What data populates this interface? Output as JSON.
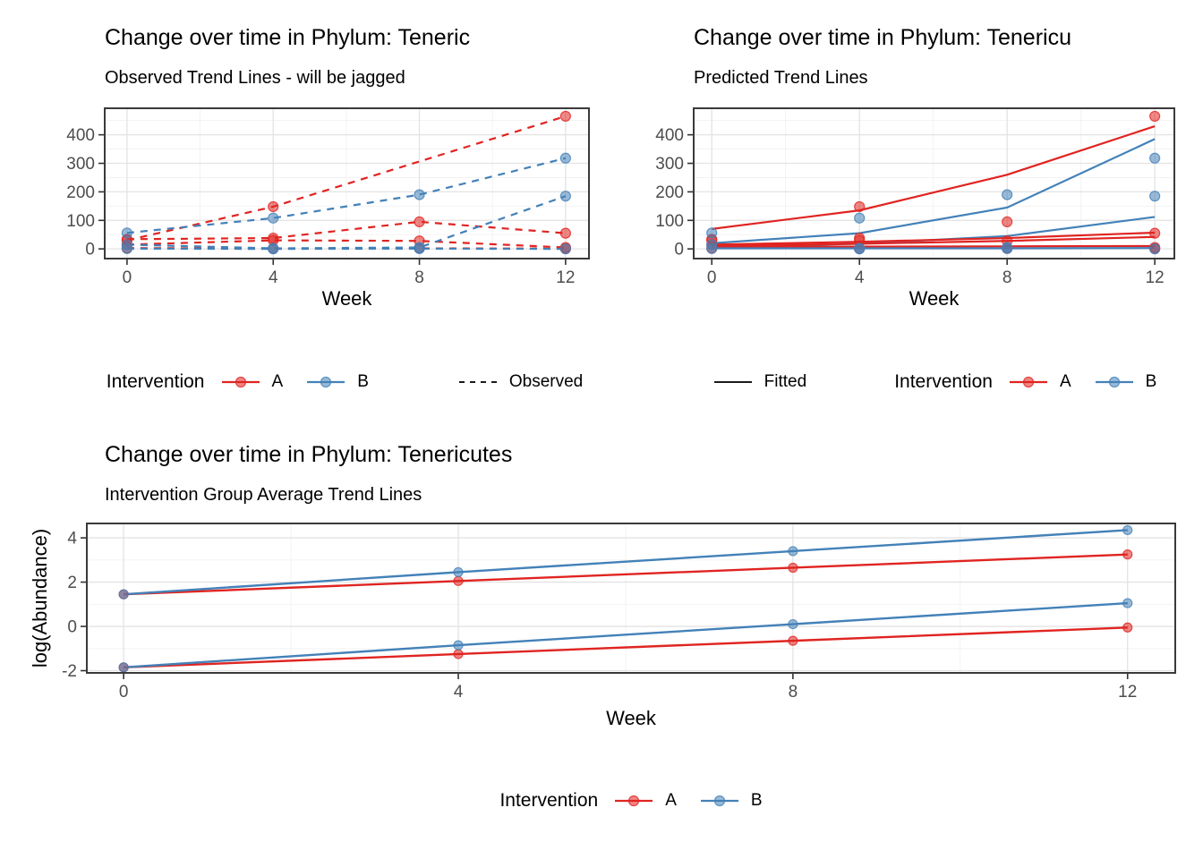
{
  "colors": {
    "A": "#E02421",
    "B": "#4381B8",
    "grid_major": "#E3E3E3",
    "grid_minor": "#F1F1F1",
    "panel_border": "#3A3A3A",
    "tick_mark": "#333333",
    "axis_text": "#4D4D4D",
    "title_text": "#000000",
    "legend_key_line": "#1A1A1A"
  },
  "chart_data": [
    {
      "key": "observed",
      "type": "line",
      "title": "Change over time in Phylum: Teneric",
      "subtitle": "Observed Trend Lines - will be jagged",
      "xlabel": "Week",
      "x_ticks": [
        0,
        4,
        8,
        12
      ],
      "x_minor": [
        2,
        6,
        10
      ],
      "y_ticks": [
        0,
        100,
        200,
        300,
        400
      ],
      "y_minor": [
        50,
        150,
        250,
        350,
        450
      ],
      "ylim": [
        -34,
        493
      ],
      "xlim": [
        -0.61,
        12.64
      ],
      "grid": true,
      "legend_position": "bottom",
      "series": [
        {
          "name": "A-subject-1",
          "group": "A",
          "dashed": true,
          "points": true,
          "x": [
            0,
            4,
            12
          ],
          "y": [
            30,
            148,
            465
          ]
        },
        {
          "name": "A-subject-2",
          "group": "A",
          "dashed": true,
          "points": true,
          "x": [
            0,
            4,
            8,
            12
          ],
          "y": [
            34,
            38,
            95,
            55
          ]
        },
        {
          "name": "A-subject-3",
          "group": "A",
          "dashed": true,
          "points": true,
          "x": [
            0,
            4,
            8,
            12
          ],
          "y": [
            15,
            30,
            28,
            5
          ]
        },
        {
          "name": "A-subject-4",
          "group": "A",
          "dashed": true,
          "points": true,
          "x": [
            0,
            4,
            8,
            12
          ],
          "y": [
            3,
            1,
            2,
            1
          ]
        },
        {
          "name": "B-subject-1",
          "group": "B",
          "dashed": true,
          "points": true,
          "x": [
            0,
            4,
            8,
            12
          ],
          "y": [
            56,
            108,
            190,
            318
          ]
        },
        {
          "name": "B-subject-2",
          "group": "B",
          "dashed": true,
          "points": true,
          "x": [
            0,
            4,
            8,
            12
          ],
          "y": [
            15,
            2,
            5,
            185
          ]
        },
        {
          "name": "B-subject-3",
          "group": "B",
          "dashed": true,
          "points": true,
          "x": [
            0,
            4,
            8,
            12
          ],
          "y": [
            1,
            0,
            1,
            0
          ]
        }
      ],
      "legend": {
        "title": "Intervention",
        "groups": [
          "A",
          "B"
        ],
        "linetype_label": "Observed",
        "linetype": "dashed"
      }
    },
    {
      "key": "predicted",
      "type": "line",
      "title": "Change over time in Phylum: Tenericu",
      "subtitle": "Predicted Trend Lines",
      "xlabel": "Week",
      "x_ticks": [
        0,
        4,
        8,
        12
      ],
      "x_minor": [
        2,
        6,
        10
      ],
      "y_ticks": [
        0,
        100,
        200,
        300,
        400
      ],
      "y_minor": [
        50,
        150,
        250,
        350,
        450
      ],
      "ylim": [
        -34,
        493
      ],
      "xlim": [
        -0.49,
        12.53
      ],
      "grid": true,
      "legend_position": "bottom",
      "series": [
        {
          "name": "obs-A-1",
          "group": "A",
          "line": false,
          "points": true,
          "x": [
            0,
            4,
            12
          ],
          "y": [
            30,
            148,
            465
          ]
        },
        {
          "name": "obs-A-2",
          "group": "A",
          "line": false,
          "points": true,
          "x": [
            0,
            4,
            8,
            12
          ],
          "y": [
            34,
            38,
            95,
            55
          ]
        },
        {
          "name": "obs-A-3",
          "group": "A",
          "line": false,
          "points": true,
          "x": [
            0,
            4,
            8,
            12
          ],
          "y": [
            15,
            30,
            28,
            5
          ]
        },
        {
          "name": "obs-A-4",
          "group": "A",
          "line": false,
          "points": true,
          "x": [
            0,
            4,
            8,
            12
          ],
          "y": [
            3,
            1,
            2,
            1
          ]
        },
        {
          "name": "obs-B-1",
          "group": "B",
          "line": false,
          "points": true,
          "x": [
            0,
            4,
            8,
            12
          ],
          "y": [
            56,
            108,
            190,
            318
          ]
        },
        {
          "name": "obs-B-2",
          "group": "B",
          "line": false,
          "points": true,
          "x": [
            0,
            4,
            8,
            12
          ],
          "y": [
            15,
            2,
            5,
            185
          ]
        },
        {
          "name": "obs-B-3",
          "group": "B",
          "line": false,
          "points": true,
          "x": [
            0,
            4,
            8,
            12
          ],
          "y": [
            1,
            0,
            1,
            0
          ]
        },
        {
          "name": "fitted-A-1",
          "group": "A",
          "points": false,
          "x": [
            0,
            4,
            8,
            12
          ],
          "y": [
            70,
            135,
            260,
            430
          ]
        },
        {
          "name": "fitted-B-1",
          "group": "B",
          "points": false,
          "x": [
            0,
            4,
            8,
            12
          ],
          "y": [
            20,
            55,
            145,
            385
          ]
        },
        {
          "name": "fitted-B-2",
          "group": "B",
          "points": false,
          "x": [
            0,
            4,
            8,
            12
          ],
          "y": [
            6,
            18,
            45,
            112
          ]
        },
        {
          "name": "fitted-A-2",
          "group": "A",
          "points": false,
          "x": [
            0,
            4,
            8,
            12
          ],
          "y": [
            15,
            25,
            38,
            57
          ]
        },
        {
          "name": "fitted-A-3",
          "group": "A",
          "points": false,
          "x": [
            0,
            4,
            8,
            12
          ],
          "y": [
            10,
            18,
            28,
            42
          ]
        },
        {
          "name": "fitted-A-4",
          "group": "A",
          "points": false,
          "x": [
            0,
            4,
            8,
            12
          ],
          "y": [
            8,
            8,
            9,
            10
          ]
        },
        {
          "name": "fitted-B-3",
          "group": "B",
          "points": false,
          "x": [
            0,
            4,
            8,
            12
          ],
          "y": [
            2,
            2,
            2,
            3
          ]
        }
      ],
      "legend": {
        "linetype_label": "Fitted",
        "linetype": "solid",
        "title": "Intervention",
        "groups": [
          "A",
          "B"
        ]
      }
    },
    {
      "key": "average",
      "type": "line",
      "title": "Change over time in Phylum: Tenericutes",
      "subtitle": "Intervention Group Average Trend Lines",
      "xlabel": "Week",
      "ylabel": "log(Abundance)",
      "x_ticks": [
        0,
        4,
        8,
        12
      ],
      "x_minor": [
        2,
        6,
        10
      ],
      "y_ticks": [
        -2,
        0,
        2,
        4
      ],
      "y_minor": [
        -1,
        1,
        3
      ],
      "ylim": [
        -2.1,
        4.65
      ],
      "xlim": [
        -0.44,
        12.57
      ],
      "grid": true,
      "legend_position": "bottom",
      "series": [
        {
          "name": "A-group-high-avg",
          "group": "A",
          "points": true,
          "x": [
            0,
            4,
            8,
            12
          ],
          "y": [
            1.45,
            2.05,
            2.65,
            3.25
          ]
        },
        {
          "name": "B-group-high-avg",
          "group": "B",
          "points": true,
          "x": [
            0,
            4,
            8,
            12
          ],
          "y": [
            1.45,
            2.45,
            3.4,
            4.35
          ]
        },
        {
          "name": "A-group-low-avg",
          "group": "A",
          "points": true,
          "x": [
            0,
            4,
            8,
            12
          ],
          "y": [
            -1.85,
            -1.25,
            -0.65,
            -0.05
          ]
        },
        {
          "name": "B-group-low-avg",
          "group": "B",
          "points": true,
          "x": [
            0,
            4,
            8,
            12
          ],
          "y": [
            -1.85,
            -0.85,
            0.1,
            1.05
          ]
        }
      ],
      "legend": {
        "title": "Intervention",
        "groups": [
          "A",
          "B"
        ]
      }
    }
  ]
}
